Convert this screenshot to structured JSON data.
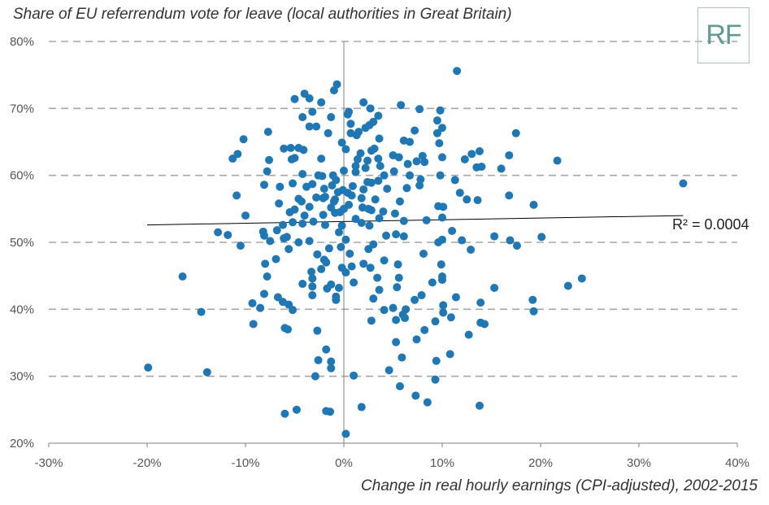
{
  "title": "Share of EU referrendum vote for leave (local authorities in Great Britain)",
  "logo_text": "RF",
  "r2_label": "R² = 0.0004",
  "colors": {
    "point": "#1f77b4",
    "gridline": "#a6a6a6",
    "axis": "#7f7f7f",
    "trendline": "#000000"
  },
  "chart_data": {
    "type": "scatter",
    "title": "Share of EU referrendum vote for leave (local authorities in Great Britain)",
    "xlabel": "Change in real hourly earnings (CPI-adjusted), 2002-2015",
    "ylabel": "",
    "xlim": [
      -30,
      40
    ],
    "ylim": [
      20,
      80
    ],
    "x_ticks": [
      "-30%",
      "-20%",
      "-10%",
      "0%",
      "10%",
      "20%",
      "30%",
      "40%"
    ],
    "y_ticks": [
      "20%",
      "30%",
      "40%",
      "50%",
      "60%",
      "70%",
      "80%"
    ],
    "grid": "horizontal dashed",
    "trendline": {
      "x": [
        -20,
        34.5
      ],
      "y": [
        52.6,
        54.0
      ],
      "r2": 0.0004
    },
    "points": [
      [
        11.5,
        75.6
      ],
      [
        -0.7,
        73.6
      ],
      [
        -1.0,
        72.7
      ],
      [
        -4.0,
        72.2
      ],
      [
        -3.5,
        71.5
      ],
      [
        -5.0,
        71.4
      ],
      [
        -2.3,
        70.9
      ],
      [
        2.0,
        70.9
      ],
      [
        5.8,
        70.5
      ],
      [
        2.7,
        70.0
      ],
      [
        7.7,
        69.9
      ],
      [
        -3.2,
        69.5
      ],
      [
        0.5,
        69.5
      ],
      [
        0.4,
        69.1
      ],
      [
        9.8,
        69.7
      ],
      [
        3.5,
        68.9
      ],
      [
        -4.2,
        68.7
      ],
      [
        -1.3,
        68.7
      ],
      [
        9.5,
        68.2
      ],
      [
        3.0,
        68.0
      ],
      [
        0.7,
        67.7
      ],
      [
        -3.5,
        67.3
      ],
      [
        -2.8,
        67.3
      ],
      [
        10.0,
        67.1
      ],
      [
        2.2,
        67.1
      ],
      [
        2.6,
        67.5
      ],
      [
        -7.7,
        66.5
      ],
      [
        -1.6,
        66.3
      ],
      [
        0.7,
        66.3
      ],
      [
        9.5,
        66.3
      ],
      [
        7.2,
        66.7
      ],
      [
        1.5,
        66.5
      ],
      [
        1.3,
        66.0
      ],
      [
        17.5,
        66.3
      ],
      [
        6.1,
        65.2
      ],
      [
        -10.2,
        65.4
      ],
      [
        3.6,
        65.5
      ],
      [
        -0.2,
        64.9
      ],
      [
        6.7,
        65.0
      ],
      [
        9.7,
        64.8
      ],
      [
        3.1,
        64.0
      ],
      [
        -4.6,
        64.1
      ],
      [
        -6.1,
        64.0
      ],
      [
        -4.1,
        63.8
      ],
      [
        -5.4,
        64.1
      ],
      [
        0.2,
        63.9
      ],
      [
        2.8,
        63.7
      ],
      [
        13.8,
        63.6
      ],
      [
        1.7,
        63.3
      ],
      [
        13.0,
        63.2
      ],
      [
        -10.8,
        63.2
      ],
      [
        16.8,
        63.0
      ],
      [
        5.0,
        63.0
      ],
      [
        8.0,
        62.9
      ],
      [
        5.6,
        62.7
      ],
      [
        10.0,
        62.7
      ],
      [
        -5.0,
        62.6
      ],
      [
        3.5,
        62.5
      ],
      [
        -2.3,
        62.5
      ],
      [
        -7.6,
        62.3
      ],
      [
        1.4,
        62.4
      ],
      [
        12.3,
        62.4
      ],
      [
        -11.3,
        62.5
      ],
      [
        -5.3,
        62.4
      ],
      [
        21.7,
        62.2
      ],
      [
        2.4,
        62.2
      ],
      [
        7.4,
        62.1
      ],
      [
        8.2,
        62.0
      ],
      [
        6.5,
        61.7
      ],
      [
        3.7,
        61.4
      ],
      [
        1.2,
        61.4
      ],
      [
        16.0,
        61.0
      ],
      [
        13.5,
        61.2
      ],
      [
        2.2,
        61.1
      ],
      [
        14.0,
        61.3
      ],
      [
        -7.8,
        60.6
      ],
      [
        5.1,
        60.6
      ],
      [
        -4.2,
        60.2
      ],
      [
        1.2,
        60.5
      ],
      [
        0.0,
        60.7
      ],
      [
        4.1,
        60.0
      ],
      [
        6.7,
        60.0
      ],
      [
        9.8,
        60.0
      ],
      [
        -1.1,
        60.0
      ],
      [
        -2.6,
        60.0
      ],
      [
        -2.2,
        59.9
      ],
      [
        -0.8,
        59.3
      ],
      [
        3.5,
        59.2
      ],
      [
        2.4,
        59.0
      ],
      [
        2.8,
        58.9
      ],
      [
        7.8,
        59.4
      ],
      [
        11.3,
        59.3
      ],
      [
        -5.2,
        58.8
      ],
      [
        -3.2,
        58.7
      ],
      [
        -8.1,
        58.6
      ],
      [
        -1.2,
        58.5
      ],
      [
        0.9,
        58.4
      ],
      [
        7.7,
        58.5
      ],
      [
        6.4,
        58.1
      ],
      [
        -6.5,
        58.3
      ],
      [
        -3.8,
        58.3
      ],
      [
        4.4,
        58.0
      ],
      [
        -2.0,
        58.0
      ],
      [
        2.0,
        57.9
      ],
      [
        -0.1,
        57.8
      ],
      [
        -0.6,
        57.5
      ],
      [
        0.4,
        57.4
      ],
      [
        11.8,
        57.4
      ],
      [
        0.8,
        57.0
      ],
      [
        -1.9,
        56.8
      ],
      [
        -2.8,
        56.7
      ],
      [
        1.8,
        56.6
      ],
      [
        -10.9,
        57.0
      ],
      [
        16.8,
        57.0
      ],
      [
        -0.9,
        56.4
      ],
      [
        -2.1,
        56.6
      ],
      [
        -4.6,
        56.5
      ],
      [
        3.2,
        56.4
      ],
      [
        -4.3,
        56.1
      ],
      [
        5.7,
        56.1
      ],
      [
        13.6,
        56.3
      ],
      [
        -1.0,
        56.1
      ],
      [
        12.5,
        56.4
      ],
      [
        -6.6,
        55.8
      ],
      [
        0.5,
        55.6
      ],
      [
        9.6,
        55.4
      ],
      [
        -3.5,
        55.3
      ],
      [
        1.9,
        55.2
      ],
      [
        -1.3,
        55.2
      ],
      [
        10.1,
        55.3
      ],
      [
        -5.0,
        54.9
      ],
      [
        0.0,
        55.0
      ],
      [
        2.5,
        55.0
      ],
      [
        19.3,
        55.6
      ],
      [
        2.8,
        54.8
      ],
      [
        4.0,
        54.6
      ],
      [
        -5.5,
        54.5
      ],
      [
        -0.4,
        54.5
      ],
      [
        -0.9,
        54.4
      ],
      [
        5.2,
        54.3
      ],
      [
        -2.1,
        54.1
      ],
      [
        -10.0,
        54.0
      ],
      [
        -4.0,
        54.0
      ],
      [
        3.6,
        53.6
      ],
      [
        1.2,
        53.5
      ],
      [
        10.0,
        53.7
      ],
      [
        8.4,
        53.3
      ],
      [
        6.1,
        53.2
      ],
      [
        -5.2,
        53.0
      ],
      [
        -3.1,
        53.1
      ],
      [
        1.8,
        52.9
      ],
      [
        -4.2,
        52.8
      ],
      [
        -0.2,
        52.5
      ],
      [
        -1.9,
        52.6
      ],
      [
        -6.2,
        52.6
      ],
      [
        2.6,
        52.5
      ],
      [
        -6.8,
        51.8
      ],
      [
        11.0,
        51.7
      ],
      [
        -0.5,
        51.5
      ],
      [
        -12.8,
        51.5
      ],
      [
        -8.2,
        51.6
      ],
      [
        5.3,
        51.2
      ],
      [
        -11.8,
        51.1
      ],
      [
        4.3,
        51.0
      ],
      [
        -8.1,
        51.0
      ],
      [
        6.1,
        50.9
      ],
      [
        -5.8,
        50.8
      ],
      [
        -6.1,
        50.6
      ],
      [
        16.9,
        50.3
      ],
      [
        0.2,
        50.4
      ],
      [
        10.0,
        50.4
      ],
      [
        12.0,
        50.3
      ],
      [
        -7.5,
        50.2
      ],
      [
        20.1,
        50.8
      ],
      [
        15.3,
        50.9
      ],
      [
        -3.5,
        50.2
      ],
      [
        9.6,
        50.0
      ],
      [
        -4.6,
        50.0
      ],
      [
        -10.5,
        49.5
      ],
      [
        17.6,
        49.5
      ],
      [
        -0.3,
        49.3
      ],
      [
        3.0,
        49.7
      ],
      [
        -1.5,
        49.1
      ],
      [
        -5.6,
        49.0
      ],
      [
        2.5,
        49.0
      ],
      [
        12.9,
        48.9
      ],
      [
        0.6,
        48.3
      ],
      [
        8.1,
        48.3
      ],
      [
        -2.7,
        48.2
      ],
      [
        -6.9,
        47.5
      ],
      [
        -2.0,
        47.4
      ],
      [
        4.1,
        47.3
      ],
      [
        -1.8,
        47.0
      ],
      [
        2.0,
        46.8
      ],
      [
        -8.0,
        46.8
      ],
      [
        5.5,
        46.7
      ],
      [
        9.9,
        46.7
      ],
      [
        0.8,
        46.4
      ],
      [
        -0.2,
        46.2
      ],
      [
        2.7,
        46.2
      ],
      [
        -2.3,
        46.0
      ],
      [
        -3.3,
        45.6
      ],
      [
        0.2,
        45.5
      ],
      [
        -16.4,
        44.9
      ],
      [
        -7.8,
        44.9
      ],
      [
        -3.2,
        44.6
      ],
      [
        10.0,
        44.9
      ],
      [
        5.6,
        44.7
      ],
      [
        24.2,
        44.6
      ],
      [
        3.4,
        44.7
      ],
      [
        10.0,
        44.4
      ],
      [
        1.0,
        44.0
      ],
      [
        9.0,
        44.0
      ],
      [
        -4.2,
        43.8
      ],
      [
        -1.3,
        43.7
      ],
      [
        -3.2,
        43.4
      ],
      [
        22.8,
        43.5
      ],
      [
        5.4,
        43.3
      ],
      [
        15.3,
        43.2
      ],
      [
        -0.5,
        43.2
      ],
      [
        -1.7,
        43.1
      ],
      [
        3.6,
        42.9
      ],
      [
        -8.1,
        42.3
      ],
      [
        -3.2,
        42.1
      ],
      [
        -0.8,
        41.9
      ],
      [
        7.9,
        42.1
      ],
      [
        11.4,
        41.8
      ],
      [
        -6.7,
        41.8
      ],
      [
        3.0,
        41.6
      ],
      [
        -6.2,
        41.1
      ],
      [
        19.2,
        41.4
      ],
      [
        7.2,
        41.4
      ],
      [
        -0.8,
        41.4
      ],
      [
        13.9,
        41.0
      ],
      [
        -9.3,
        40.9
      ],
      [
        10.1,
        40.6
      ],
      [
        -5.6,
        40.7
      ],
      [
        -8.5,
        40.2
      ],
      [
        5.0,
        40.2
      ],
      [
        -5.2,
        39.9
      ],
      [
        4.1,
        39.9
      ],
      [
        6.3,
        40.0
      ],
      [
        19.3,
        39.7
      ],
      [
        -14.5,
        39.6
      ],
      [
        10.1,
        39.5
      ],
      [
        6.0,
        39.2
      ],
      [
        10.9,
        38.8
      ],
      [
        6.2,
        38.7
      ],
      [
        5.3,
        38.4
      ],
      [
        2.8,
        38.3
      ],
      [
        9.3,
        38.2
      ],
      [
        13.9,
        38.0
      ],
      [
        14.3,
        37.8
      ],
      [
        -9.2,
        37.8
      ],
      [
        -6.0,
        37.2
      ],
      [
        -5.7,
        37.0
      ],
      [
        8.2,
        36.9
      ],
      [
        -2.7,
        36.8
      ],
      [
        12.7,
        36.2
      ],
      [
        7.4,
        35.5
      ],
      [
        5.3,
        35.1
      ],
      [
        -1.8,
        34.0
      ],
      [
        10.8,
        33.3
      ],
      [
        5.9,
        32.8
      ],
      [
        9.4,
        32.3
      ],
      [
        -2.6,
        32.4
      ],
      [
        -1.3,
        32.2
      ],
      [
        -19.9,
        31.3
      ],
      [
        -1.3,
        31.2
      ],
      [
        -13.9,
        30.6
      ],
      [
        4.6,
        30.9
      ],
      [
        1.0,
        30.1
      ],
      [
        -2.9,
        30.0
      ],
      [
        9.3,
        29.5
      ],
      [
        5.7,
        28.5
      ],
      [
        7.3,
        27.1
      ],
      [
        8.5,
        26.1
      ],
      [
        13.8,
        25.6
      ],
      [
        1.8,
        25.4
      ],
      [
        -4.8,
        25.0
      ],
      [
        -1.8,
        24.8
      ],
      [
        -1.4,
        24.7
      ],
      [
        -6.0,
        24.4
      ],
      [
        0.2,
        21.4
      ],
      [
        34.5,
        58.8
      ]
    ]
  }
}
